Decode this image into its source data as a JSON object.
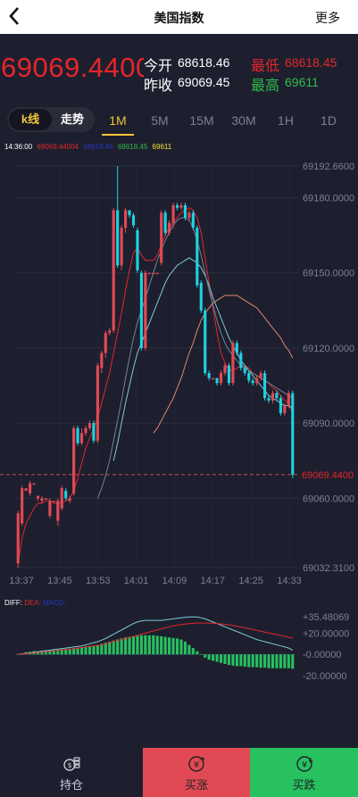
{
  "header": {
    "title": "美国指数",
    "more_label": "更多"
  },
  "quote": {
    "last_price": "69069.4400",
    "open_label": "今开",
    "open_value": "68618.46",
    "prev_close_label": "昨收",
    "prev_close_value": "69069.45",
    "low_label": "最低",
    "low_value": "68618.45",
    "high_label": "最高",
    "high_value": "69611"
  },
  "tabs": {
    "kline_label": "k线",
    "trend_label": "走势",
    "periods": [
      "1M",
      "5M",
      "15M",
      "30M",
      "1H",
      "1D"
    ],
    "active_period": "1M"
  },
  "legend": {
    "time": "14:36:00",
    "items": [
      {
        "value": "69069.44004",
        "color": "#e5262b"
      },
      {
        "value": "68618.46",
        "color": "#2836c8"
      },
      {
        "value": "68618.45",
        "color": "#2fbd48"
      },
      {
        "value": "69611",
        "color": "#f0e433"
      }
    ]
  },
  "macd_legend": {
    "items": [
      {
        "label": "DIFF:",
        "color": "#ffffff"
      },
      {
        "label": "DEA:",
        "color": "#e5262b"
      },
      {
        "label": "MACD:",
        "color": "#2836c8"
      }
    ]
  },
  "colors": {
    "up": "#e14a55",
    "down": "#1fd1e0",
    "grid": "#2c2f40",
    "price_line": "#c44a4a"
  },
  "chart_data": {
    "type": "candlestick",
    "price_axis_labels": [
      "69192.6600",
      "69180.0000",
      "69150.0000",
      "69120.0000",
      "69090.0000",
      "69060.0000",
      "69032.3100"
    ],
    "price_axis_values": [
      69192.66,
      69180,
      69150,
      69120,
      69090,
      69060,
      69032.31
    ],
    "current_price_label": "69069.4400",
    "current_price": 69069.44,
    "time_labels": [
      "13:37",
      "13:45",
      "13:53",
      "14:01",
      "14:09",
      "14:17",
      "14:25",
      "14:33"
    ],
    "ylim": [
      69032.31,
      69192.66
    ],
    "candles": [
      [
        69034,
        69054,
        69032.31,
        69055
      ],
      [
        69050,
        69064,
        69049,
        69065
      ],
      [
        69063,
        69064,
        69063,
        69064
      ],
      [
        69062,
        69066,
        69061,
        69067
      ],
      [
        69066,
        69066,
        69066,
        69066
      ],
      [
        69060,
        69061,
        69059,
        69061
      ],
      [
        69059,
        69060,
        69058,
        69061
      ],
      [
        69060,
        69060,
        69060,
        69060
      ],
      [
        69053,
        69059,
        69052,
        69060
      ],
      [
        69059,
        69059,
        69059,
        69059
      ],
      [
        69051,
        69059,
        69049,
        69060
      ],
      [
        69056,
        69064,
        69055,
        69065
      ],
      [
        69063,
        69060,
        69059,
        69064
      ],
      [
        69059,
        69060,
        69058,
        69061
      ],
      [
        69062,
        69088,
        69061,
        69089
      ],
      [
        69088,
        69082,
        69081,
        69089
      ],
      [
        69082,
        69086,
        69081,
        69088
      ],
      [
        69086,
        69088,
        69085,
        69089
      ],
      [
        69088,
        69090,
        69087,
        69091
      ],
      [
        69090,
        69083,
        69082,
        69091
      ],
      [
        69083,
        69113,
        69082,
        69114
      ],
      [
        69112,
        69118,
        69110,
        69119
      ],
      [
        69118,
        69126,
        69116,
        69127
      ],
      [
        69126,
        69127,
        69125,
        69128
      ],
      [
        69127,
        69175,
        69126,
        69176
      ],
      [
        69175,
        69153,
        69152,
        69192.66
      ],
      [
        69153,
        69168,
        69151,
        69169
      ],
      [
        69168,
        69175,
        69166,
        69176
      ],
      [
        69175,
        69173,
        69172,
        69175
      ],
      [
        69173,
        69169,
        69168,
        69174
      ],
      [
        69167,
        69151,
        69150,
        69168
      ],
      [
        69150,
        69120,
        69119,
        69151
      ],
      [
        69120,
        69150,
        69119,
        69151
      ],
      [
        69150,
        69150,
        69150,
        69150
      ],
      [
        69150,
        69150,
        69150,
        69150
      ],
      [
        69150,
        69150,
        69150,
        69150
      ],
      [
        69154,
        69174,
        69153,
        69175
      ],
      [
        69174,
        69166,
        69165,
        69175
      ],
      [
        69166,
        69170,
        69165,
        69171
      ],
      [
        69170,
        69177,
        69168,
        69178
      ],
      [
        69177,
        69176,
        69175,
        69178
      ],
      [
        69176,
        69177,
        69175,
        69178
      ],
      [
        69177,
        69172,
        69171,
        69178
      ],
      [
        69172,
        69174,
        69171,
        69175
      ],
      [
        69174,
        69168,
        69167,
        69175
      ],
      [
        69168,
        69145,
        69144,
        69169
      ],
      [
        69146,
        69135,
        69134,
        69147
      ],
      [
        69135,
        69110,
        69109,
        69136
      ],
      [
        69110,
        69108,
        69107,
        69111
      ],
      [
        69108,
        69108,
        69108,
        69108
      ],
      [
        69108,
        69106,
        69105,
        69108
      ],
      [
        69106,
        69110,
        69105,
        69111
      ],
      [
        69110,
        69113,
        69109,
        69114
      ],
      [
        69113,
        69106,
        69105,
        69114
      ],
      [
        69106,
        69122,
        69105,
        69123
      ],
      [
        69122,
        69118,
        69117,
        69123
      ],
      [
        69118,
        69112,
        69111,
        69119
      ],
      [
        69112,
        69110,
        69109,
        69113
      ],
      [
        69110,
        69107,
        69106,
        69111
      ],
      [
        69107,
        69106,
        69105,
        69108
      ],
      [
        69106,
        69108,
        69105,
        69109
      ],
      [
        69108,
        69110,
        69107,
        69111
      ],
      [
        69110,
        69100,
        69099,
        69111
      ],
      [
        69100,
        69099,
        69098,
        69101
      ],
      [
        69099,
        69102,
        69098,
        69103
      ],
      [
        69102,
        69100,
        69099,
        69103
      ],
      [
        69100,
        69094,
        69093,
        69101
      ],
      [
        69094,
        69097,
        69093,
        69098
      ],
      [
        69097,
        69102,
        69096,
        69103
      ],
      [
        69102,
        69069.44,
        69068,
        69103
      ]
    ],
    "ma_lines": [
      {
        "color": "#e5262b",
        "values": [
          69034,
          69044,
          69050,
          69053,
          69056,
          69058,
          69058,
          69059,
          69059,
          69058,
          69058,
          69058,
          69059,
          69060,
          69063,
          69068,
          69074,
          69080,
          69084,
          69088,
          69092,
          69098,
          69104,
          69110,
          69118,
          69126,
          69134,
          69143,
          69151,
          69158,
          69160,
          69157,
          69155,
          69155,
          69155,
          69157,
          69161,
          69165,
          69168,
          69170,
          69172,
          69174,
          69175,
          69176,
          69175,
          69172,
          69166,
          69156,
          69146,
          69136,
          69126,
          69118,
          69114,
          69111,
          69111,
          69112,
          69113,
          69113,
          69112,
          69110,
          69109,
          69108,
          69107,
          69106,
          69104,
          69103,
          69101,
          69099,
          69098,
          69094
        ]
      },
      {
        "color": "#e0876c",
        "values": [
          null,
          null,
          null,
          null,
          null,
          null,
          null,
          null,
          null,
          null,
          null,
          null,
          null,
          null,
          null,
          null,
          null,
          null,
          null,
          null,
          null,
          null,
          null,
          null,
          null,
          null,
          null,
          null,
          null,
          null,
          null,
          null,
          null,
          null,
          69086,
          69088,
          69091,
          69094,
          69097,
          69100,
          69104,
          69108,
          69113,
          69118,
          69122,
          69127,
          69131,
          69134,
          69136,
          69138,
          69139,
          69140,
          69141,
          69141,
          69141,
          69141,
          69140,
          69139,
          69138,
          69137,
          69136,
          69134,
          69132,
          69130,
          69128,
          69126,
          69124,
          69121,
          69119,
          69116
        ]
      },
      {
        "color": "#7ecad6",
        "values": [
          null,
          null,
          null,
          null,
          null,
          null,
          null,
          null,
          null,
          null,
          null,
          null,
          null,
          null,
          null,
          null,
          null,
          null,
          null,
          null,
          null,
          null,
          null,
          null,
          69075,
          69082,
          69090,
          69098,
          69105,
          69112,
          69118,
          69122,
          69126,
          69130,
          69134,
          69138,
          69142,
          69146,
          69149,
          69151,
          69153,
          69154,
          69155,
          69156,
          69155,
          69154,
          69152,
          69149,
          69145,
          69140,
          69136,
          69132,
          69128,
          69124,
          69121,
          69118,
          69115,
          69113,
          69111,
          69109,
          69107,
          69105,
          69103,
          69101,
          69100,
          69099,
          69098,
          69097,
          69097,
          69096
        ]
      },
      {
        "color": "#6f8594",
        "values": [
          null,
          null,
          null,
          null,
          null,
          null,
          null,
          null,
          null,
          null,
          null,
          null,
          null,
          null,
          null,
          null,
          null,
          null,
          null,
          null,
          69060,
          69064,
          69069,
          69075,
          69083,
          69091,
          69099,
          69108,
          69116,
          69124,
          69130,
          69135,
          69140,
          69145,
          69150,
          69155,
          69159,
          69163,
          69166,
          69169,
          69171,
          69172,
          69172,
          69171,
          69168,
          69163,
          69157,
          69150,
          69143,
          69137,
          69131,
          69126,
          69122,
          69119,
          69117,
          69115,
          69113,
          69112,
          69111,
          69110,
          69109,
          69108,
          69107,
          69106,
          69105,
          69104,
          69103,
          69102,
          69101,
          69100
        ]
      }
    ],
    "macd": {
      "axis_labels": [
        "+35.48069",
        "+20.00000",
        "-0.00000",
        "-20.00000"
      ],
      "axis_values": [
        35.48069,
        20,
        0,
        -20
      ],
      "ylim": [
        -25,
        38
      ],
      "histogram": [
        0.5,
        1,
        2,
        2.5,
        3,
        3,
        3.5,
        4,
        4,
        4,
        4.5,
        5,
        5,
        5.5,
        6,
        6.5,
        7,
        7.5,
        8,
        8,
        9,
        10,
        11,
        12,
        13,
        14,
        15,
        16,
        16.5,
        17,
        17.5,
        18,
        18,
        18,
        18,
        17.5,
        17,
        16.5,
        16,
        15.5,
        15,
        14,
        12,
        9,
        6,
        3,
        0,
        -3,
        -5,
        -6,
        -7,
        -8,
        -9,
        -10,
        -10.5,
        -11,
        -11,
        -11.5,
        -12,
        -12,
        -12,
        -12.5,
        -12.5,
        -13,
        -13,
        -13,
        -13,
        -13,
        -13,
        -13.5
      ],
      "diff": [
        0,
        0.5,
        1,
        1.5,
        2,
        2.5,
        3,
        3.5,
        4,
        4.5,
        5,
        5.5,
        6,
        6.5,
        7,
        7.5,
        8,
        9,
        10,
        11,
        12,
        13.5,
        15,
        17,
        19,
        21,
        23,
        25,
        27,
        29,
        30.5,
        31.5,
        32,
        32,
        32,
        32,
        32,
        32.5,
        33,
        33.5,
        34,
        34.5,
        35,
        35.3,
        35.4,
        35.2,
        34.5,
        33.5,
        32,
        30.5,
        29,
        27.5,
        26,
        24.5,
        23,
        21.5,
        20,
        18.5,
        17,
        15.5,
        14,
        13,
        12,
        11,
        10,
        9,
        8,
        7,
        6,
        4
      ],
      "dea": [
        0,
        0.3,
        0.6,
        1,
        1.4,
        1.8,
        2.2,
        2.6,
        3,
        3.4,
        3.8,
        4.2,
        4.6,
        5,
        5.5,
        6,
        6.5,
        7,
        7.5,
        8,
        8.5,
        9,
        10,
        11,
        12,
        13,
        14,
        15,
        16,
        17,
        18,
        19,
        20,
        21,
        22,
        23,
        24,
        25,
        26,
        27,
        27.5,
        28,
        28.5,
        29,
        29.3,
        29.5,
        29.6,
        29.6,
        29.5,
        29.3,
        29,
        28.7,
        28.3,
        27.8,
        27.2,
        26.5,
        25.8,
        25,
        24.2,
        23.4,
        22.6,
        21.8,
        21,
        20.2,
        19.4,
        18.6,
        17.8,
        17,
        16.2,
        15.4
      ]
    }
  },
  "footer": {
    "hold_label": "持仓",
    "buy_up_label": "买涨",
    "buy_down_label": "买跌"
  }
}
